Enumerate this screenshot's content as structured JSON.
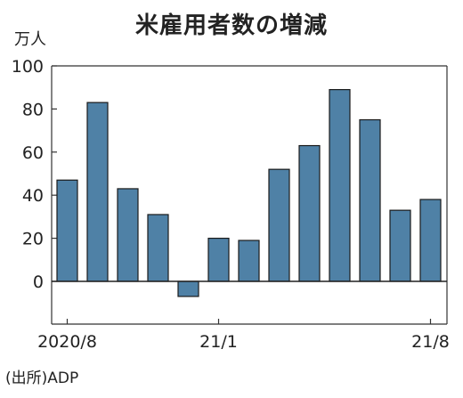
{
  "chart_data": {
    "type": "bar",
    "title": "米雇用者数の増減",
    "ylabel": "万人",
    "source": "(出所)ADP",
    "x_tick_labels": [
      "2020/8",
      "21/1",
      "21/8"
    ],
    "x": [
      "2020-08",
      "2020-09",
      "2020-10",
      "2020-11",
      "2020-12",
      "2021-01",
      "2021-02",
      "2021-03",
      "2021-04",
      "2021-05",
      "2021-06",
      "2021-07",
      "2021-08"
    ],
    "values": [
      47,
      83,
      43,
      31,
      -7,
      20,
      19,
      52,
      63,
      89,
      75,
      33,
      38
    ],
    "ylim": [
      -20,
      100
    ],
    "y_ticks": [
      0,
      20,
      40,
      60,
      80,
      100
    ],
    "grid": false,
    "bar_color": "#4f81a6",
    "bar_edge_color": "#1a1a1a"
  }
}
